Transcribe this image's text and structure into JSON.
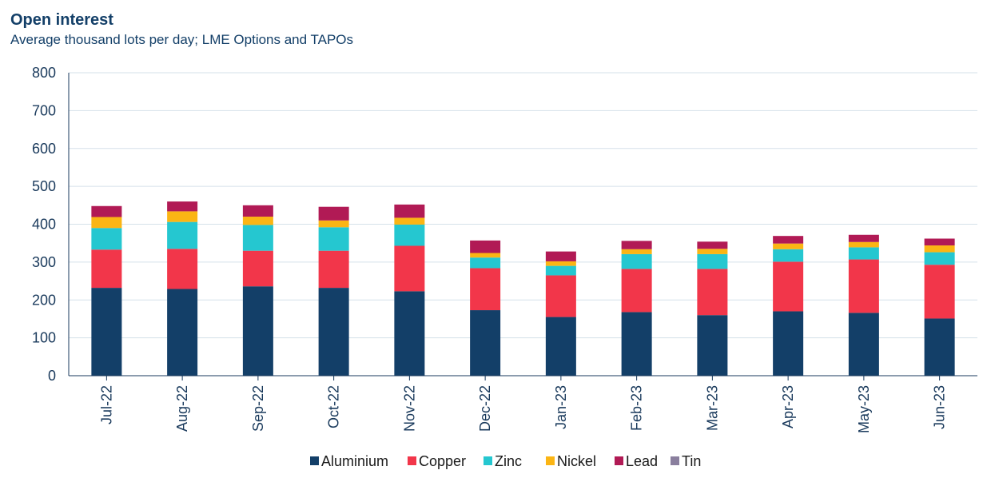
{
  "chart_data": {
    "type": "bar",
    "stacked": true,
    "title": "Open interest",
    "subtitle": "Average thousand lots per day; LME Options and TAPOs",
    "xlabel": "",
    "ylabel": "",
    "ylim": [
      0,
      800
    ],
    "yticks": [
      0,
      100,
      200,
      300,
      400,
      500,
      600,
      700,
      800
    ],
    "grid": true,
    "legend_position": "bottom",
    "categories": [
      "Jul-22",
      "Aug-22",
      "Sep-22",
      "Oct-22",
      "Nov-22",
      "Dec-22",
      "Jan-23",
      "Feb-23",
      "Mar-23",
      "Apr-23",
      "May-23",
      "Jun-23"
    ],
    "series": [
      {
        "name": "Aluminium",
        "color": "#133f68",
        "values": [
          232,
          229,
          236,
          232,
          223,
          173,
          155,
          168,
          160,
          170,
          166,
          151
        ]
      },
      {
        "name": "Copper",
        "color": "#f2364a",
        "values": [
          101,
          106,
          94,
          98,
          120,
          111,
          110,
          114,
          122,
          131,
          141,
          142
        ]
      },
      {
        "name": "Zinc",
        "color": "#25c7d0",
        "values": [
          57,
          71,
          68,
          62,
          56,
          28,
          25,
          39,
          39,
          33,
          32,
          33
        ]
      },
      {
        "name": "Nickel",
        "color": "#fbb514",
        "values": [
          29,
          28,
          22,
          18,
          18,
          12,
          12,
          13,
          14,
          15,
          14,
          18
        ]
      },
      {
        "name": "Lead",
        "color": "#b11a55",
        "values": [
          29,
          26,
          30,
          36,
          35,
          33,
          26,
          22,
          19,
          20,
          19,
          18
        ]
      },
      {
        "name": "Tin",
        "color": "#8a7f9e",
        "values": [
          0,
          0,
          0,
          0,
          0,
          0,
          0,
          0,
          0,
          0,
          0,
          0
        ]
      }
    ]
  }
}
